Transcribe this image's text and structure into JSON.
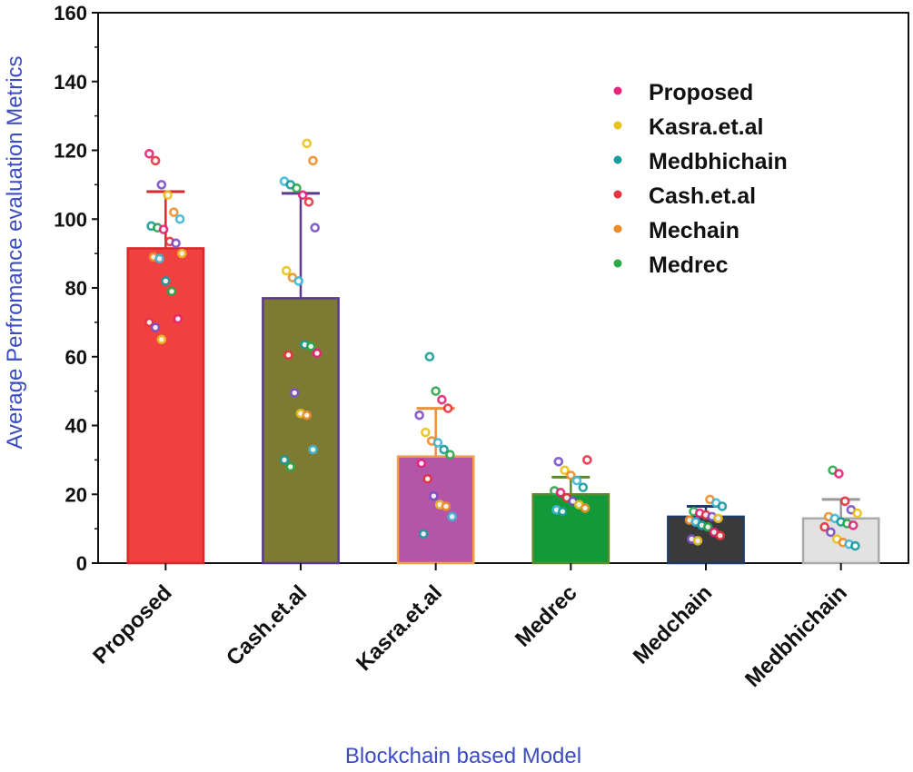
{
  "chart_data": {
    "type": "bar",
    "title": "",
    "xlabel": "Blockchain based Model",
    "ylabel": "Average Perfromance evaluation Metrics",
    "ylim": [
      0,
      160
    ],
    "yticks": [
      "0",
      "20",
      "40",
      "60",
      "80",
      "100",
      "120",
      "140",
      "160"
    ],
    "categories": [
      "Proposed",
      "Cash.et.al",
      "Kasra.et.al",
      "Medrec",
      "Medchain",
      "Medbhichain"
    ],
    "values": [
      91.5,
      77,
      31,
      20,
      13.5,
      13
    ],
    "error_upper": [
      108,
      107.5,
      45,
      25,
      16.5,
      18.5
    ],
    "bar_colors": [
      "#f04040",
      "#7d7a32",
      "#b455a8",
      "#129938",
      "#3a3a3a",
      "#e2e2e2"
    ],
    "bar_edge_colors": [
      "#d62a2a",
      "#5b3a8e",
      "#f2a04a",
      "#5b8a2a",
      "#1f3a66",
      "#aaaaaa"
    ],
    "error_colors": [
      "#d62a2a",
      "#5b3a8e",
      "#f0903a",
      "#5b8a2a",
      "#1f3a66",
      "#9a9a9a"
    ],
    "scatter_points": [
      [
        119,
        117,
        110,
        107,
        102,
        100,
        98,
        97.5,
        97,
        93.5,
        93,
        90,
        89,
        88.5,
        82,
        79,
        71,
        70,
        68.5,
        65
      ],
      [
        122,
        117,
        111,
        110,
        109,
        107,
        105,
        97.5,
        85,
        83,
        82,
        63.5,
        63,
        61,
        60.5,
        49.5,
        43.5,
        43,
        33,
        30,
        28
      ],
      [
        60,
        50,
        47.5,
        45,
        43,
        38,
        35.5,
        35,
        33,
        31.5,
        29,
        24.5,
        19.5,
        17,
        16.5,
        13.5,
        8.5
      ],
      [
        30,
        29.5,
        27,
        25.5,
        24,
        22,
        21,
        20.5,
        19,
        18,
        17,
        16,
        15.5,
        15
      ],
      [
        18.5,
        17.5,
        16.5,
        15,
        14.5,
        14,
        13.5,
        13,
        12.5,
        12,
        11,
        10.5,
        9,
        8,
        7,
        6.5
      ],
      [
        27,
        26,
        18,
        15.5,
        14.5,
        13.5,
        13,
        12,
        11.5,
        11,
        10.5,
        9,
        7,
        6,
        5.5,
        5
      ]
    ],
    "legend": {
      "position": "top-right",
      "entries": [
        {
          "label": "Proposed",
          "color": "#e5247a"
        },
        {
          "label": "Kasra.et.al",
          "color": "#e8c21e"
        },
        {
          "label": "Medbhichain",
          "color": "#1a9c9c"
        },
        {
          "label": "Cash.et.al",
          "color": "#e53340"
        },
        {
          "label": "Mechain",
          "color": "#f08c28"
        },
        {
          "label": " Medrec",
          "color": "#2aa84a"
        }
      ]
    },
    "point_palette": [
      "#e5247a",
      "#e8c21e",
      "#1a9c9c",
      "#e53340",
      "#f08c28",
      "#2aa84a",
      "#7b4fc9",
      "#3fb8d8"
    ]
  }
}
